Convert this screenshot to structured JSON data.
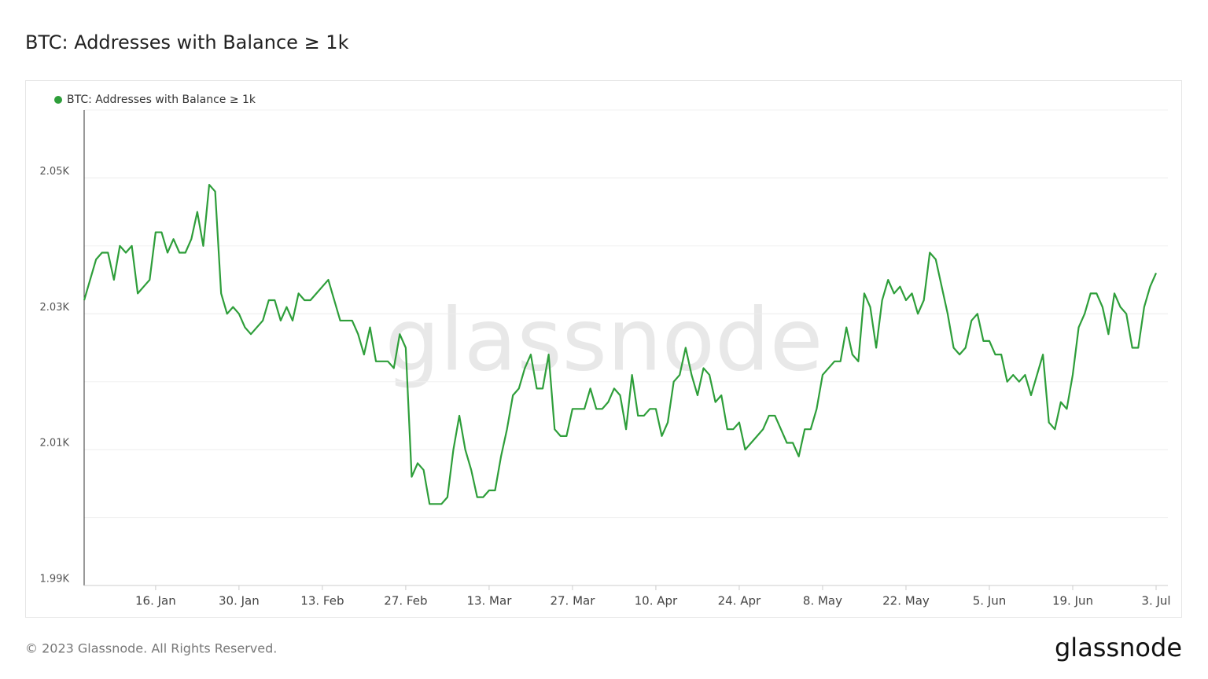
{
  "chart_data": {
    "type": "line",
    "title": "BTC: Addresses with Balance ≥ 1k",
    "watermark": "glassnode",
    "footer": "© 2023 Glassnode. All Rights Reserved.",
    "logo": "glassnode",
    "x": [
      "4. Jan",
      "5. Jan",
      "6. Jan",
      "7. Jan",
      "8. Jan",
      "9. Jan",
      "10. Jan",
      "11. Jan",
      "12. Jan",
      "13. Jan",
      "14. Jan",
      "15. Jan",
      "16. Jan",
      "17. Jan",
      "18. Jan",
      "19. Jan",
      "20. Jan",
      "21. Jan",
      "22. Jan",
      "23. Jan",
      "24. Jan",
      "25. Jan",
      "26. Jan",
      "27. Jan",
      "28. Jan",
      "29. Jan",
      "30. Jan",
      "31. Jan",
      "1. Feb",
      "2. Feb",
      "3. Feb",
      "4. Feb",
      "5. Feb",
      "6. Feb",
      "7. Feb",
      "8. Feb",
      "9. Feb",
      "10. Feb",
      "11. Feb",
      "12. Feb",
      "13. Feb",
      "14. Feb",
      "15. Feb",
      "16. Feb",
      "17. Feb",
      "18. Feb",
      "19. Feb",
      "20. Feb",
      "21. Feb",
      "22. Feb",
      "23. Feb",
      "24. Feb",
      "25. Feb",
      "26. Feb",
      "27. Feb",
      "28. Feb",
      "1. Mar",
      "2. Mar",
      "3. Mar",
      "4. Mar",
      "5. Mar",
      "6. Mar",
      "7. Mar",
      "8. Mar",
      "9. Mar",
      "10. Mar",
      "11. Mar",
      "12. Mar",
      "13. Mar",
      "14. Mar",
      "15. Mar",
      "16. Mar",
      "17. Mar",
      "18. Mar",
      "19. Mar",
      "20. Mar",
      "21. Mar",
      "22. Mar",
      "23. Mar",
      "24. Mar",
      "25. Mar",
      "26. Mar",
      "27. Mar",
      "28. Mar",
      "29. Mar",
      "30. Mar",
      "31. Mar",
      "1. Apr",
      "2. Apr",
      "3. Apr",
      "4. Apr",
      "5. Apr",
      "6. Apr",
      "7. Apr",
      "8. Apr",
      "9. Apr",
      "10. Apr",
      "11. Apr",
      "12. Apr",
      "13. Apr",
      "14. Apr",
      "15. Apr",
      "16. Apr",
      "17. Apr",
      "18. Apr",
      "19. Apr",
      "20. Apr",
      "21. Apr",
      "22. Apr",
      "23. Apr",
      "24. Apr",
      "25. Apr",
      "26. Apr",
      "27. Apr",
      "28. Apr",
      "29. Apr",
      "30. Apr",
      "1. May",
      "2. May",
      "3. May",
      "4. May",
      "5. May",
      "6. May",
      "7. May",
      "8. May",
      "9. May",
      "10. May",
      "11. May",
      "12. May",
      "13. May",
      "14. May",
      "15. May",
      "16. May",
      "17. May",
      "18. May",
      "19. May",
      "20. May",
      "21. May",
      "22. May",
      "23. May",
      "24. May",
      "25. May",
      "26. May",
      "27. May",
      "28. May",
      "29. May",
      "30. May",
      "31. May",
      "1. Jun",
      "2. Jun",
      "3. Jun",
      "4. Jun",
      "5. Jun",
      "6. Jun",
      "7. Jun",
      "8. Jun",
      "9. Jun",
      "10. Jun",
      "11. Jun",
      "12. Jun",
      "13. Jun",
      "14. Jun",
      "15. Jun",
      "16. Jun",
      "17. Jun",
      "18. Jun",
      "19. Jun",
      "20. Jun",
      "21. Jun",
      "22. Jun",
      "23. Jun",
      "24. Jun",
      "25. Jun",
      "26. Jun",
      "27. Jun",
      "28. Jun",
      "29. Jun",
      "30. Jun",
      "1. Jul",
      "2. Jul",
      "3. Jul"
    ],
    "series": [
      {
        "name": "BTC: Addresses with Balance ≥ 1k",
        "color": "#2e9e3a",
        "values": [
          2032,
          2035,
          2038,
          2039,
          2039,
          2035,
          2040,
          2039,
          2040,
          2033,
          2034,
          2035,
          2042,
          2042,
          2039,
          2041,
          2039,
          2039,
          2041,
          2045,
          2040,
          2049,
          2048,
          2033,
          2030,
          2031,
          2030,
          2028,
          2027,
          2028,
          2029,
          2032,
          2032,
          2029,
          2031,
          2029,
          2033,
          2032,
          2032,
          2033,
          2034,
          2035,
          2032,
          2029,
          2029,
          2029,
          2027,
          2024,
          2028,
          2023,
          2023,
          2023,
          2022,
          2027,
          2025,
          2006,
          2008,
          2007,
          2002,
          2002,
          2002,
          2003,
          2010,
          2015,
          2010,
          2007,
          2003,
          2003,
          2004,
          2004,
          2009,
          2013,
          2018,
          2019,
          2022,
          2024,
          2019,
          2019,
          2024,
          2013,
          2012,
          2012,
          2016,
          2016,
          2016,
          2019,
          2016,
          2016,
          2017,
          2019,
          2018,
          2013,
          2021,
          2015,
          2015,
          2016,
          2016,
          2012,
          2014,
          2020,
          2021,
          2025,
          2021,
          2018,
          2022,
          2021,
          2017,
          2018,
          2013,
          2013,
          2014,
          2010,
          2011,
          2012,
          2013,
          2015,
          2015,
          2013,
          2011,
          2011,
          2009,
          2013,
          2013,
          2016,
          2021,
          2022,
          2023,
          2023,
          2028,
          2024,
          2023,
          2033,
          2031,
          2025,
          2032,
          2035,
          2033,
          2034,
          2032,
          2033,
          2030,
          2032,
          2039,
          2038,
          2034,
          2030,
          2025,
          2024,
          2025,
          2029,
          2030,
          2026,
          2026,
          2024,
          2024,
          2020,
          2021,
          2020,
          2021,
          2018,
          2021,
          2024,
          2014,
          2013,
          2017,
          2016,
          2021,
          2028,
          2030,
          2033,
          2033,
          2031,
          2027,
          2033,
          2031,
          2030,
          2025,
          2025,
          2031,
          2034,
          2036
        ]
      }
    ],
    "xticks": [
      "16. Jan",
      "30. Jan",
      "13. Feb",
      "27. Feb",
      "13. Mar",
      "27. Mar",
      "10. Apr",
      "24. Apr",
      "8. May",
      "22. May",
      "5. Jun",
      "19. Jun",
      "3. Jul"
    ],
    "ylim": [
      1990,
      2060
    ],
    "yticks": [
      {
        "value": 1990,
        "label": "1.99K"
      },
      {
        "value": 2010,
        "label": "2.01K"
      },
      {
        "value": 2030,
        "label": "2.03K"
      },
      {
        "value": 2050,
        "label": "2.05K"
      }
    ],
    "yminor": [
      2000,
      2020,
      2040,
      2060
    ],
    "grid": true,
    "legend": "top-left"
  }
}
